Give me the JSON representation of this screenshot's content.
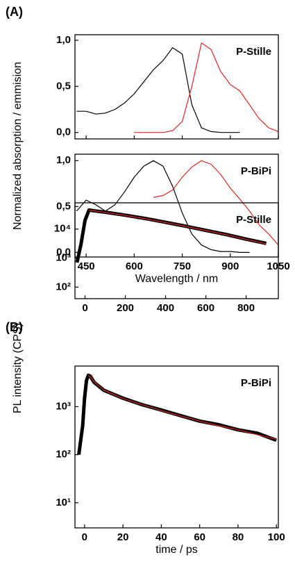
{
  "chart_data": [
    {
      "type": "line",
      "panel_label": "(A)",
      "annotation": "P-Stille",
      "ylabel": "Normalized absorption / emmision",
      "x": [
        420,
        450,
        480,
        510,
        540,
        570,
        600,
        630,
        660,
        690,
        720,
        750,
        780,
        810,
        840,
        870,
        900,
        930,
        960,
        990,
        1020,
        1050
      ],
      "series": [
        {
          "color": "#000000",
          "values": [
            0.23,
            0.23,
            0.2,
            0.21,
            0.25,
            0.32,
            0.42,
            0.55,
            0.68,
            0.78,
            0.92,
            0.85,
            0.3,
            0.05,
            0.01,
            0,
            0,
            0,
            null,
            null,
            null,
            null
          ]
        },
        {
          "color": "#e8231f",
          "values": [
            null,
            null,
            null,
            null,
            null,
            null,
            0,
            0,
            0,
            0,
            0.02,
            0.12,
            0.5,
            0.97,
            0.9,
            0.66,
            0.52,
            0.45,
            0.3,
            0.15,
            0.05,
            0.01
          ]
        }
      ],
      "xlim": [
        415,
        1050
      ],
      "xticks": [
        450,
        600,
        750,
        900,
        1050
      ],
      "show_xtick_labels": false,
      "ylim": [
        -0.07,
        1.06
      ],
      "yticks": [
        {
          "value": 0,
          "label": "0,0"
        },
        {
          "value": 0.5,
          "label": "0,5"
        },
        {
          "value": 1,
          "label": "1,0"
        }
      ],
      "log_y": false
    },
    {
      "type": "line",
      "annotation": "P-BiPi",
      "xlabel": "Wavelength / nm",
      "x": [
        420,
        450,
        480,
        510,
        540,
        570,
        600,
        630,
        660,
        690,
        720,
        750,
        780,
        810,
        840,
        870,
        900,
        930,
        960,
        990,
        1020,
        1050
      ],
      "series": [
        {
          "color": "#000000",
          "values": [
            0.45,
            0.57,
            0.52,
            0.45,
            0.52,
            0.66,
            0.82,
            0.94,
            1.0,
            0.94,
            0.72,
            0.43,
            0.2,
            0.08,
            0.03,
            0.01,
            0.01,
            0,
            0,
            null,
            null,
            null
          ]
        },
        {
          "color": "#e8231f",
          "values": [
            null,
            null,
            null,
            null,
            null,
            null,
            null,
            null,
            0.6,
            0.62,
            0.68,
            0.82,
            0.93,
            1.0,
            0.96,
            0.85,
            0.7,
            0.58,
            0.45,
            0.3,
            0.2,
            0.08
          ]
        }
      ],
      "xlim": [
        415,
        1050
      ],
      "xticks": [
        450,
        600,
        750,
        900,
        1050
      ],
      "show_xtick_labels": true,
      "ylim": [
        -0.05,
        1.07
      ],
      "yticks": [
        {
          "value": 0,
          "label": "0,0"
        },
        {
          "value": 0.5,
          "label": "0,5"
        },
        {
          "value": 1,
          "label": "1,0"
        }
      ],
      "log_y": false
    },
    {
      "type": "line",
      "panel_label": "(B)",
      "annotation": "P-Stille",
      "ylabel": "PL intensity (CPS)",
      "x": [
        -40,
        -20,
        0,
        20,
        50,
        100,
        200,
        300,
        400,
        500,
        600,
        700,
        800,
        900
      ],
      "series": [
        {
          "color": "#000000",
          "values": [
            700,
            3000,
            20000,
            45000,
            42000,
            38000,
            30000,
            23000,
            17000,
            12500,
            9000,
            6500,
            4500,
            3200
          ]
        },
        {
          "color": "#e8231f",
          "values": [
            null,
            null,
            null,
            44000,
            41500,
            37500,
            29500,
            22500,
            16800,
            12300,
            8900,
            6400,
            4400,
            3100
          ]
        }
      ],
      "xlim": [
        -50,
        960
      ],
      "xticks": [
        0,
        200,
        400,
        600,
        800
      ],
      "show_xtick_labels": true,
      "ylim": [
        40,
        80000
      ],
      "yticks": [
        {
          "value": 100,
          "label": "10²"
        },
        {
          "value": 1000,
          "label": "10³"
        },
        {
          "value": 10000,
          "label": "10⁴"
        }
      ],
      "log_y": true
    },
    {
      "type": "line",
      "annotation": "P-BiPi",
      "xlabel": "time / ps",
      "x": [
        -3,
        -1,
        0,
        1,
        2,
        3,
        5,
        10,
        20,
        30,
        40,
        50,
        60,
        70,
        80,
        90,
        100
      ],
      "series": [
        {
          "color": "#000000",
          "values": [
            100,
            400,
            1500,
            3500,
            4500,
            4300,
            3200,
            2200,
            1500,
            1100,
            850,
            650,
            500,
            420,
            330,
            280,
            200
          ]
        },
        {
          "color": "#e8231f",
          "values": [
            null,
            null,
            null,
            null,
            4400,
            4200,
            3300,
            2200,
            1480,
            1100,
            830,
            640,
            500,
            400,
            330,
            260,
            210
          ]
        }
      ],
      "xlim": [
        -5,
        101
      ],
      "xticks": [
        0,
        20,
        40,
        60,
        80,
        100
      ],
      "show_xtick_labels": true,
      "ylim": [
        3,
        7000
      ],
      "yticks": [
        {
          "value": 10,
          "label": "10¹"
        },
        {
          "value": 100,
          "label": "10²"
        },
        {
          "value": 1000,
          "label": "10³"
        }
      ],
      "log_y": true
    }
  ]
}
